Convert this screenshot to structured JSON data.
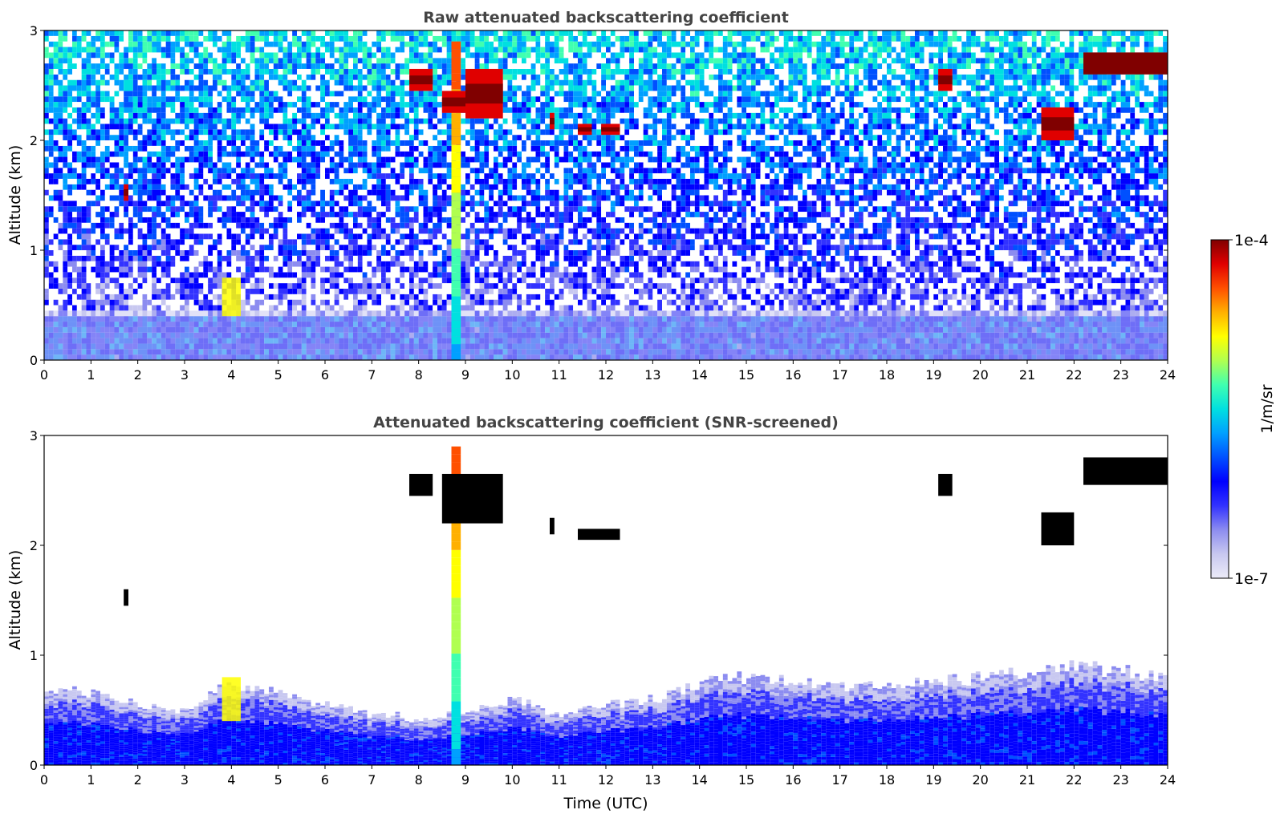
{
  "chart_data": [
    {
      "type": "heatmap",
      "title": "Raw attenuated backscattering coefficient",
      "xlabel": "",
      "ylabel": "Altitude (km)",
      "xlim": [
        0,
        24
      ],
      "ylim": [
        0,
        3
      ],
      "x_ticks": [
        "0",
        "1",
        "2",
        "3",
        "4",
        "5",
        "6",
        "7",
        "8",
        "9",
        "10",
        "11",
        "12",
        "13",
        "14",
        "15",
        "16",
        "17",
        "18",
        "19",
        "20",
        "21",
        "22",
        "23",
        "24"
      ],
      "y_ticks": [
        "0",
        "1",
        "2",
        "3"
      ],
      "background_noise": {
        "level_at_top": 0.5,
        "level_near_ground": 0.08,
        "boundary_layer_top_km": 0.4
      },
      "features": [
        {
          "label": "boundary layer aerosol",
          "x_range": [
            0,
            24
          ],
          "y_range": [
            0,
            0.45
          ],
          "value_fraction": 0.08
        },
        {
          "label": "precipitation column",
          "x_range": [
            8.7,
            8.9
          ],
          "y_range": [
            0,
            2.9
          ],
          "value_fraction": 0.45
        },
        {
          "label": "cloud",
          "x_range": [
            7.8,
            8.3
          ],
          "y_range": [
            2.45,
            2.65
          ],
          "value_fraction": 0.95
        },
        {
          "label": "cloud",
          "x_range": [
            8.5,
            9.0
          ],
          "y_range": [
            2.25,
            2.45
          ],
          "value_fraction": 0.95
        },
        {
          "label": "cloud",
          "x_range": [
            9.0,
            9.8
          ],
          "y_range": [
            2.2,
            2.65
          ],
          "value_fraction": 0.92
        },
        {
          "label": "cloud",
          "x_range": [
            10.8,
            10.9
          ],
          "y_range": [
            2.1,
            2.25
          ],
          "value_fraction": 0.9
        },
        {
          "label": "cloud",
          "x_range": [
            11.4,
            11.7
          ],
          "y_range": [
            2.05,
            2.15
          ],
          "value_fraction": 0.9
        },
        {
          "label": "cloud",
          "x_range": [
            11.9,
            12.3
          ],
          "y_range": [
            2.05,
            2.15
          ],
          "value_fraction": 0.9
        },
        {
          "label": "cloud",
          "x_range": [
            19.1,
            19.4
          ],
          "y_range": [
            2.45,
            2.65
          ],
          "value_fraction": 0.95
        },
        {
          "label": "cloud",
          "x_range": [
            21.3,
            22.0
          ],
          "y_range": [
            2.0,
            2.3
          ],
          "value_fraction": 0.95
        },
        {
          "label": "cloud",
          "x_range": [
            22.2,
            24.0
          ],
          "y_range": [
            2.6,
            2.8
          ],
          "value_fraction": 0.97
        },
        {
          "label": "cloud",
          "x_range": [
            1.7,
            1.8
          ],
          "y_range": [
            1.45,
            1.6
          ],
          "value_fraction": 0.9
        },
        {
          "label": "aerosol plume",
          "x_range": [
            3.8,
            4.2
          ],
          "y_range": [
            0.4,
            0.75
          ],
          "value_fraction": 0.7
        }
      ]
    },
    {
      "type": "heatmap",
      "title": "Attenuated backscattering coefficient (SNR-screened)",
      "xlabel": "Time (UTC)",
      "ylabel": "Altitude (km)",
      "xlim": [
        0,
        24
      ],
      "ylim": [
        0,
        3
      ],
      "x_ticks": [
        "0",
        "1",
        "2",
        "3",
        "4",
        "5",
        "6",
        "7",
        "8",
        "9",
        "10",
        "11",
        "12",
        "13",
        "14",
        "15",
        "16",
        "17",
        "18",
        "19",
        "20",
        "21",
        "22",
        "23",
        "24"
      ],
      "y_ticks": [
        "0",
        "1",
        "2",
        "3"
      ],
      "boundary_layer": {
        "x": [
          0,
          1,
          2,
          3,
          3.5,
          4,
          5,
          6,
          7,
          7.5,
          8,
          8.5,
          9,
          9.5,
          10,
          11,
          12,
          13,
          14,
          15,
          16,
          17,
          18,
          19,
          20,
          21,
          22,
          23,
          24
        ],
        "top_km": [
          0.7,
          0.65,
          0.55,
          0.5,
          0.65,
          0.75,
          0.65,
          0.55,
          0.45,
          0.45,
          0.4,
          0.45,
          0.5,
          0.55,
          0.6,
          0.45,
          0.55,
          0.6,
          0.75,
          0.8,
          0.75,
          0.7,
          0.75,
          0.75,
          0.8,
          0.85,
          0.9,
          0.85,
          0.8
        ]
      },
      "features": [
        {
          "label": "precipitation column",
          "x_range": [
            8.7,
            8.9
          ],
          "y_range": [
            0,
            2.9
          ],
          "value_fraction": 0.5
        },
        {
          "label": "cloud",
          "x_range": [
            7.8,
            8.3
          ],
          "y_range": [
            2.45,
            2.65
          ],
          "value_fraction": 1
        },
        {
          "label": "cloud",
          "x_range": [
            8.5,
            9.8
          ],
          "y_range": [
            2.2,
            2.65
          ],
          "value_fraction": 1
        },
        {
          "label": "cloud",
          "x_range": [
            10.8,
            10.9
          ],
          "y_range": [
            2.1,
            2.25
          ],
          "value_fraction": 1
        },
        {
          "label": "cloud",
          "x_range": [
            11.4,
            12.3
          ],
          "y_range": [
            2.05,
            2.15
          ],
          "value_fraction": 1
        },
        {
          "label": "cloud",
          "x_range": [
            19.1,
            19.4
          ],
          "y_range": [
            2.45,
            2.65
          ],
          "value_fraction": 1
        },
        {
          "label": "cloud",
          "x_range": [
            21.3,
            22.0
          ],
          "y_range": [
            2.0,
            2.3
          ],
          "value_fraction": 1
        },
        {
          "label": "cloud",
          "x_range": [
            22.2,
            24.0
          ],
          "y_range": [
            2.55,
            2.8
          ],
          "value_fraction": 1
        },
        {
          "label": "cloud",
          "x_range": [
            1.7,
            1.8
          ],
          "y_range": [
            1.45,
            1.6
          ],
          "value_fraction": 0.9
        },
        {
          "label": "aerosol plume",
          "x_range": [
            3.8,
            4.2
          ],
          "y_range": [
            0.4,
            0.8
          ],
          "value_fraction": 0.7
        }
      ]
    }
  ],
  "colorbar": {
    "label": "1/m/sr",
    "max_label": "1e-4",
    "min_label": "1e-7",
    "scale": "log",
    "colormap": [
      "#ecebf8",
      "#c8c8f0",
      "#8c8cf0",
      "#3232ff",
      "#0000ff",
      "#0050ff",
      "#00a0ff",
      "#00e0e0",
      "#40ffb0",
      "#b0ff50",
      "#ffff00",
      "#ffb000",
      "#ff5000",
      "#e00000",
      "#800000"
    ],
    "cloud_saturated_color": "#000000"
  }
}
